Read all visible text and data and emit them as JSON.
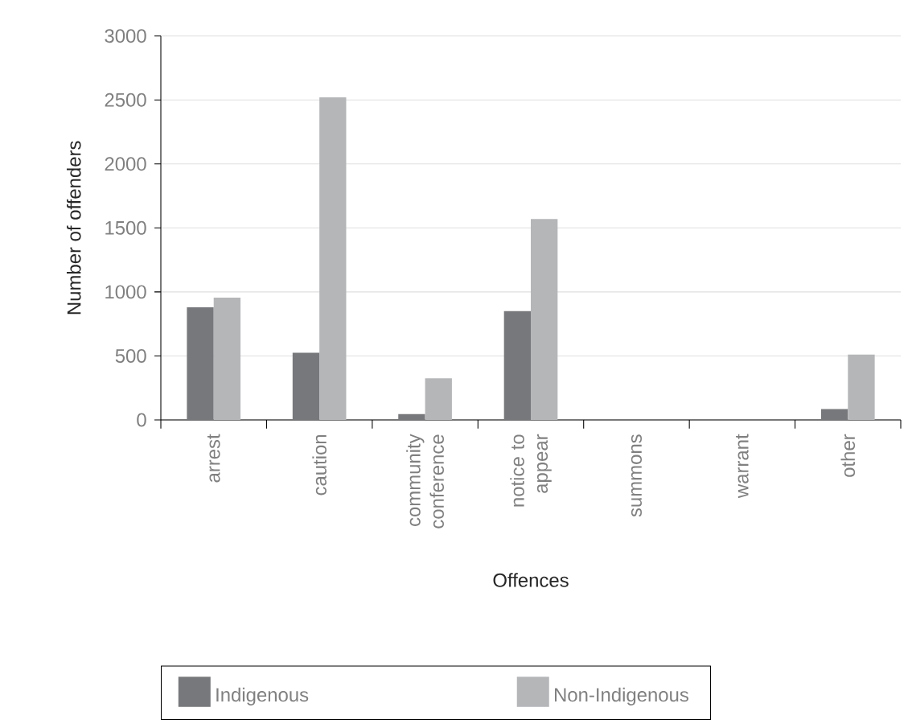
{
  "chart_data": {
    "type": "bar",
    "xlabel": "Offences",
    "ylabel": "Number of offenders",
    "categories": [
      "arrest",
      "caution",
      "community conference",
      "notice to appear",
      "summons",
      "warrant",
      "other"
    ],
    "series": [
      {
        "name": "Indigenous",
        "color": "#77787b",
        "values": [
          880,
          525,
          45,
          850,
          0,
          0,
          85
        ]
      },
      {
        "name": "Non-Indigenous",
        "color": "#b5b6b8",
        "values": [
          955,
          2520,
          325,
          1570,
          0,
          0,
          510
        ]
      }
    ],
    "ylim": [
      0,
      3000
    ],
    "yticks": [
      0,
      500,
      1000,
      1500,
      2000,
      2500,
      3000
    ],
    "grid": "y",
    "legend": "bottom"
  }
}
